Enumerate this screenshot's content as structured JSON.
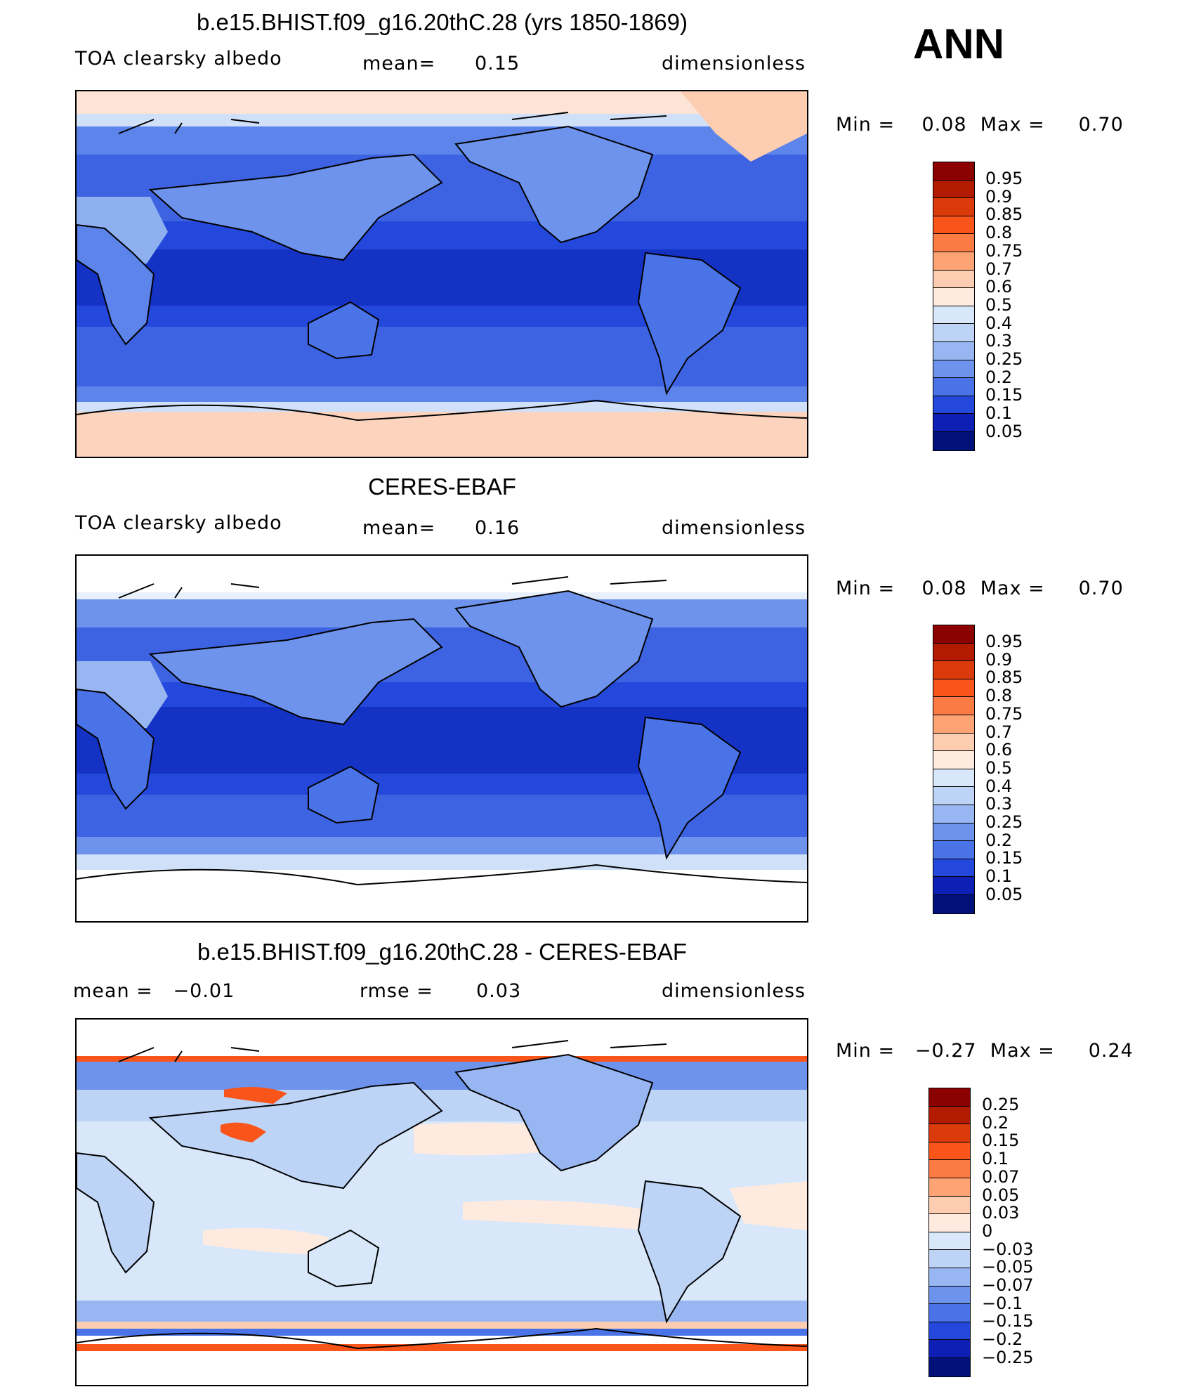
{
  "season": "ANN",
  "panels": [
    {
      "title": "b.e15.BHIST.f09_g16.20thC.28 (yrs 1850-1869)",
      "left_label": "TOA clearsky albedo",
      "middle_label": "mean=",
      "middle_value": "0.15",
      "units": "dimensionless",
      "minmax_text": "Min =    0.08  Max =     0.70",
      "colorbar_labels": [
        "0.95",
        "0.9",
        "0.85",
        "0.8",
        "0.75",
        "0.7",
        "0.6",
        "0.5",
        "0.4",
        "0.3",
        "0.25",
        "0.2",
        "0.15",
        "0.1",
        "0.05"
      ],
      "colorbar_colors": [
        "#8b0000",
        "#b31b00",
        "#db3a0a",
        "#f9541a",
        "#fc7a44",
        "#fda374",
        "#fccdb0",
        "#feeadf",
        "#d8e8fa",
        "#bdd4f7",
        "#98b7f2",
        "#6d93ec",
        "#4a73e8",
        "#2448db",
        "#0d1fb5",
        "#00127a"
      ]
    },
    {
      "title": "CERES-EBAF",
      "left_label": "TOA clearsky albedo",
      "middle_label": "mean=",
      "middle_value": "0.16",
      "units": "dimensionless",
      "minmax_text": "Min =    0.08  Max =     0.70",
      "colorbar_labels": [
        "0.95",
        "0.9",
        "0.85",
        "0.8",
        "0.75",
        "0.7",
        "0.6",
        "0.5",
        "0.4",
        "0.3",
        "0.25",
        "0.2",
        "0.15",
        "0.1",
        "0.05"
      ],
      "colorbar_colors": [
        "#8b0000",
        "#b31b00",
        "#db3a0a",
        "#f9541a",
        "#fc7a44",
        "#fda374",
        "#fccdb0",
        "#feeadf",
        "#d8e8fa",
        "#bdd4f7",
        "#98b7f2",
        "#6d93ec",
        "#4a73e8",
        "#2448db",
        "#0d1fb5",
        "#00127a"
      ]
    },
    {
      "title": "b.e15.BHIST.f09_g16.20thC.28 - CERES-EBAF",
      "left_label": "mean =   −0.01",
      "middle_label": "rmse =",
      "middle_value": "0.03",
      "units": "dimensionless",
      "minmax_text": "Min =   −0.27  Max =     0.24",
      "colorbar_labels": [
        "0.25",
        "0.2",
        "0.15",
        "0.1",
        "0.07",
        "0.05",
        "0.03",
        "0",
        "−0.03",
        "−0.05",
        "−0.07",
        "−0.1",
        "−0.15",
        "−0.2",
        "−0.25"
      ],
      "colorbar_colors": [
        "#8b0000",
        "#b31b00",
        "#db3a0a",
        "#f9541a",
        "#fc7a44",
        "#fda374",
        "#fccdb0",
        "#feeadf",
        "#d8e8fa",
        "#bdd4f7",
        "#98b7f2",
        "#6d93ec",
        "#4a73e8",
        "#2448db",
        "#0d1fb5",
        "#00127a"
      ]
    }
  ]
}
